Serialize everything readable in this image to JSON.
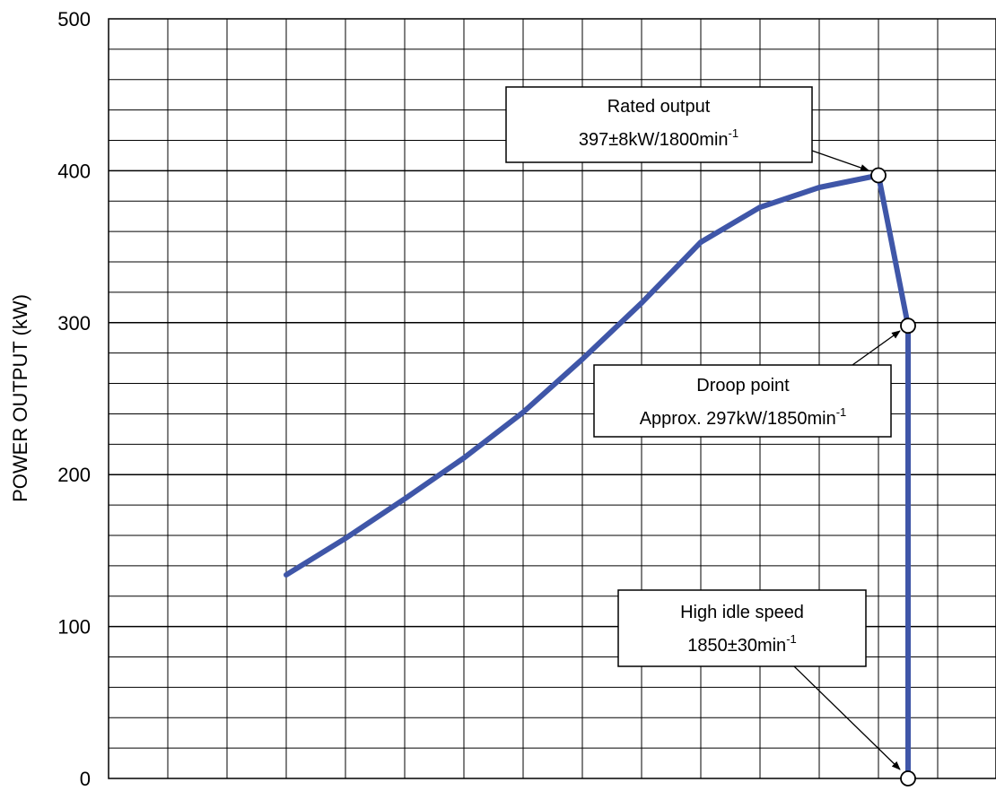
{
  "chart_data": {
    "type": "line",
    "title": "",
    "xlabel": "",
    "ylabel": "POWER OUTPUT (kW)",
    "ylim": [
      0,
      500
    ],
    "yticks": [
      0,
      100,
      200,
      300,
      400,
      500
    ],
    "grid": true,
    "minor_y_step": 20,
    "x_grid_divisions": 15,
    "colors": {
      "line": "#3f56a8",
      "grid": "#000000",
      "marker_fill": "#ffffff"
    },
    "series": [
      {
        "values": [
          [
            3,
            134
          ],
          [
            4,
            158
          ],
          [
            5,
            184
          ],
          [
            6,
            211
          ],
          [
            7,
            241
          ],
          [
            8,
            276
          ],
          [
            9,
            313
          ],
          [
            10,
            353
          ],
          [
            11,
            376
          ],
          [
            12,
            389
          ],
          [
            13,
            397
          ],
          [
            13.5,
            298
          ],
          [
            13.5,
            0
          ]
        ]
      }
    ],
    "markers": [
      [
        13,
        397
      ],
      [
        13.5,
        298
      ],
      [
        13.5,
        0
      ]
    ],
    "annotations": [
      {
        "id": "rated",
        "line1": "Rated output",
        "line2_main": "397±8kW/1800min",
        "line2_sup": "-1"
      },
      {
        "id": "droop",
        "line1": "Droop point",
        "line2_main": "Approx. 297kW/1850min",
        "line2_sup": "-1"
      },
      {
        "id": "idle",
        "line1": "High idle speed",
        "line2_main": "1850±30min",
        "line2_sup": "-1"
      }
    ]
  }
}
